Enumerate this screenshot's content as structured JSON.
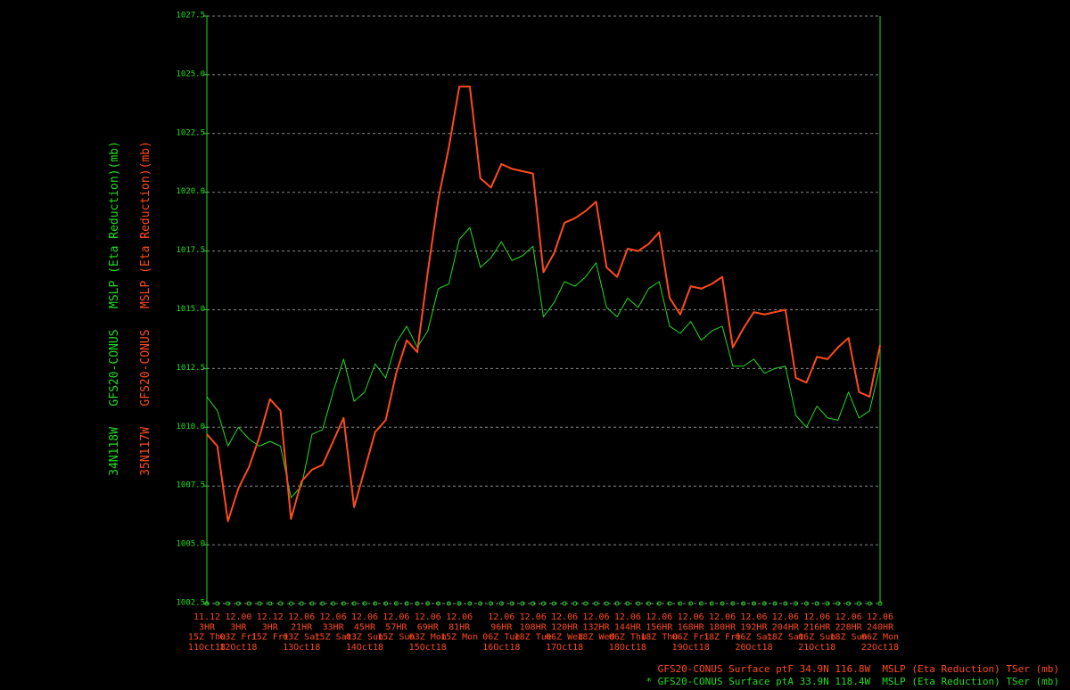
{
  "chart_data": {
    "type": "line",
    "categories": [
      [
        "11.12",
        "3HR",
        "15Z Thu",
        "11Oct18"
      ],
      null,
      null,
      [
        "12.00",
        "3HR",
        "03Z Fri",
        "12Oct18"
      ],
      null,
      null,
      [
        "12.12",
        "3HR",
        "15Z Fri"
      ],
      null,
      null,
      [
        "12.06",
        "21HR",
        "03Z Sat",
        "13Oct18"
      ],
      null,
      null,
      [
        "12.06",
        "33HR",
        "15Z Sat"
      ],
      null,
      null,
      [
        "12.06",
        "45HR",
        "03Z Sun",
        "14Oct18"
      ],
      null,
      null,
      [
        "12.06",
        "57HR",
        "15Z Sun"
      ],
      null,
      null,
      [
        "12.06",
        "69HR",
        "03Z Mon",
        "15Oct18"
      ],
      null,
      null,
      [
        "12.06",
        "81HR",
        "15Z Mon"
      ],
      null,
      null,
      null,
      [
        "12.06",
        "96HR",
        "06Z Tue",
        "16Oct18"
      ],
      null,
      null,
      [
        "12.06",
        "108HR",
        "18Z Tue"
      ],
      null,
      null,
      [
        "12.06",
        "120HR",
        "06Z Wed",
        "17Oct18"
      ],
      null,
      null,
      [
        "12.06",
        "132HR",
        "18Z Wed"
      ],
      null,
      null,
      [
        "12.06",
        "144HR",
        "06Z Thu",
        "18Oct18"
      ],
      null,
      null,
      [
        "12.06",
        "156HR",
        "18Z Thu"
      ],
      null,
      null,
      [
        "12.06",
        "168HR",
        "06Z Fri",
        "19Oct18"
      ],
      null,
      null,
      [
        "12.06",
        "180HR",
        "18Z Fri"
      ],
      null,
      null,
      [
        "12.06",
        "192HR",
        "06Z Sat",
        "20Oct18"
      ],
      null,
      null,
      [
        "12.06",
        "204HR",
        "18Z Sat"
      ],
      null,
      null,
      [
        "12.06",
        "216HR",
        "06Z Sun",
        "21Oct18"
      ],
      null,
      null,
      [
        "12.06",
        "228HR",
        "18Z Sun"
      ],
      null,
      null,
      [
        "12.06",
        "240HR",
        "06Z Mon",
        "22Oct18"
      ]
    ],
    "series": [
      {
        "name": "GFS20-CONUS Surface ptF 34.9N 116.8W  MSLP (Eta Reduction) TSer (mb)",
        "axis_label": "35N117W   GFS20-CONUS   MSLP (Eta Reduction)(mb)",
        "color": "#ff4a1c",
        "line_width": 2,
        "values": [
          1009.7,
          1009.2,
          1006.0,
          1007.4,
          1008.3,
          1009.6,
          1011.2,
          1010.7,
          1006.1,
          1007.7,
          1008.2,
          1008.4,
          1009.4,
          1010.4,
          1006.6,
          1008.2,
          1009.8,
          1010.3,
          1012.3,
          1013.7,
          1013.2,
          1016.6,
          1019.7,
          1021.9,
          1024.5,
          1024.5,
          1020.6,
          1020.2,
          1021.2,
          1021.0,
          1020.9,
          1020.8,
          1016.6,
          1017.4,
          1018.7,
          1018.9,
          1019.2,
          1019.6,
          1016.8,
          1016.4,
          1017.6,
          1017.5,
          1017.8,
          1018.3,
          1015.5,
          1014.8,
          1016.0,
          1015.9,
          1016.1,
          1016.4,
          1013.4,
          1014.2,
          1014.9,
          1014.8,
          1014.9,
          1015.0,
          1012.1,
          1011.9,
          1013.0,
          1012.9,
          1013.4,
          1013.8,
          1011.5,
          1011.3,
          1013.5
        ]
      },
      {
        "name": "* GFS20-CONUS Surface ptA 33.9N 118.4W  MSLP (Eta Reduction) TSer (mb)",
        "axis_label": "34N118W   GFS20-CONUS   MSLP (Eta Reduction)(mb)",
        "color": "#22dd22",
        "line_width": 1,
        "values": [
          1011.3,
          1010.7,
          1009.2,
          1010.0,
          1009.5,
          1009.2,
          1009.4,
          1009.2,
          1007.0,
          1007.5,
          1009.7,
          1009.9,
          1011.5,
          1012.9,
          1011.1,
          1011.5,
          1012.7,
          1012.1,
          1013.6,
          1014.3,
          1013.4,
          1014.1,
          1015.9,
          1016.1,
          1018.0,
          1018.5,
          1016.8,
          1017.2,
          1017.9,
          1017.1,
          1017.3,
          1017.7,
          1014.7,
          1015.3,
          1016.2,
          1016.0,
          1016.4,
          1017.0,
          1015.1,
          1014.7,
          1015.5,
          1015.1,
          1015.9,
          1016.2,
          1014.3,
          1014.0,
          1014.5,
          1013.7,
          1014.1,
          1014.3,
          1012.6,
          1012.6,
          1012.9,
          1012.3,
          1012.5,
          1012.6,
          1010.5,
          1010.0,
          1010.9,
          1010.4,
          1010.3,
          1011.5,
          1010.4,
          1010.7,
          1012.6
        ]
      }
    ],
    "ylim": [
      1002.5,
      1027.5
    ],
    "yticks": [
      1002.5,
      {
        "value": 1005,
        "label": "1005.0"
      },
      1007.5,
      {
        "value": 1010,
        "label": "1010.0"
      },
      1012.5,
      {
        "value": 1015,
        "label": "1015.0"
      },
      1017.5,
      {
        "value": 1020,
        "label": "1020.0"
      },
      1022.5,
      {
        "value": 1025,
        "label": "1025.0"
      },
      1027.5
    ],
    "grid": true,
    "axis_color": "#22dd22",
    "grid_color": "#888888",
    "tick_label_color": "#ff4a1c"
  }
}
